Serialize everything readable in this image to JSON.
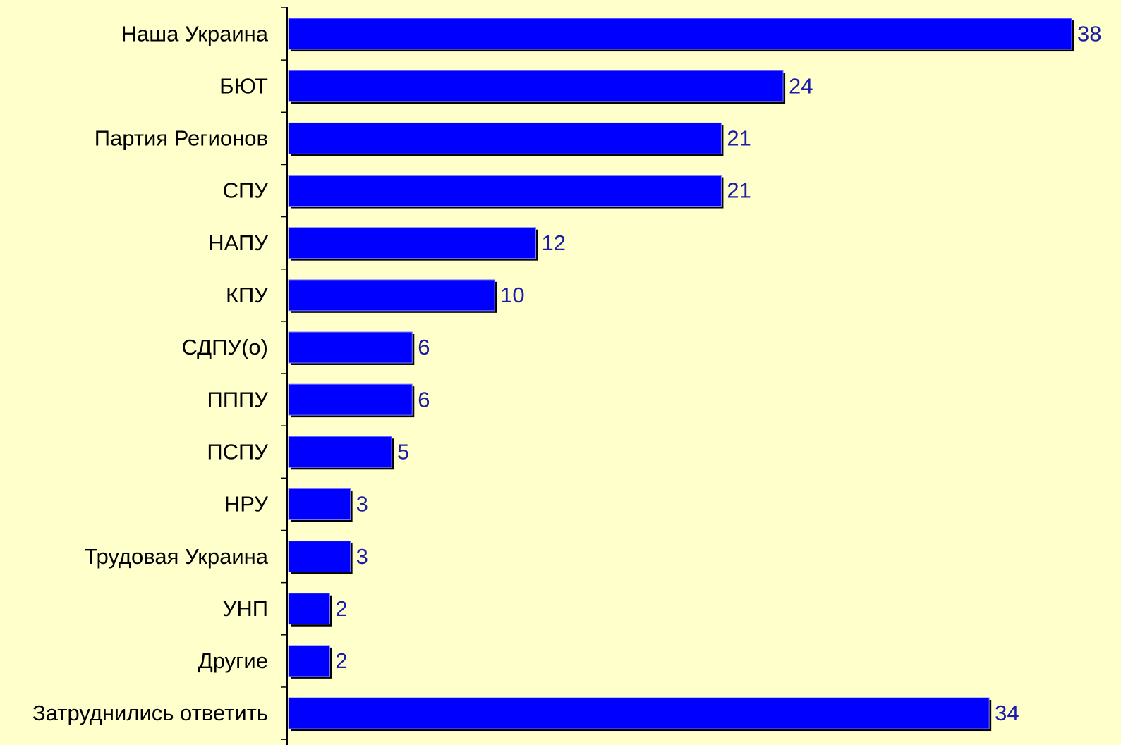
{
  "chart_data": {
    "type": "bar",
    "orientation": "horizontal",
    "categories": [
      "Наша Украина",
      "БЮТ",
      "Партия Регионов",
      "СПУ",
      "НАПУ",
      "КПУ",
      "СДПУ(о)",
      "ПППУ",
      "ПСПУ",
      "НРУ",
      "Трудовая Украина",
      "УНП",
      "Другие",
      "Затруднились ответить"
    ],
    "values": [
      38,
      24,
      21,
      21,
      12,
      10,
      6,
      6,
      5,
      3,
      3,
      2,
      2,
      34
    ],
    "color": "#0000ff",
    "xlim": [
      0,
      38
    ],
    "grid": false
  }
}
